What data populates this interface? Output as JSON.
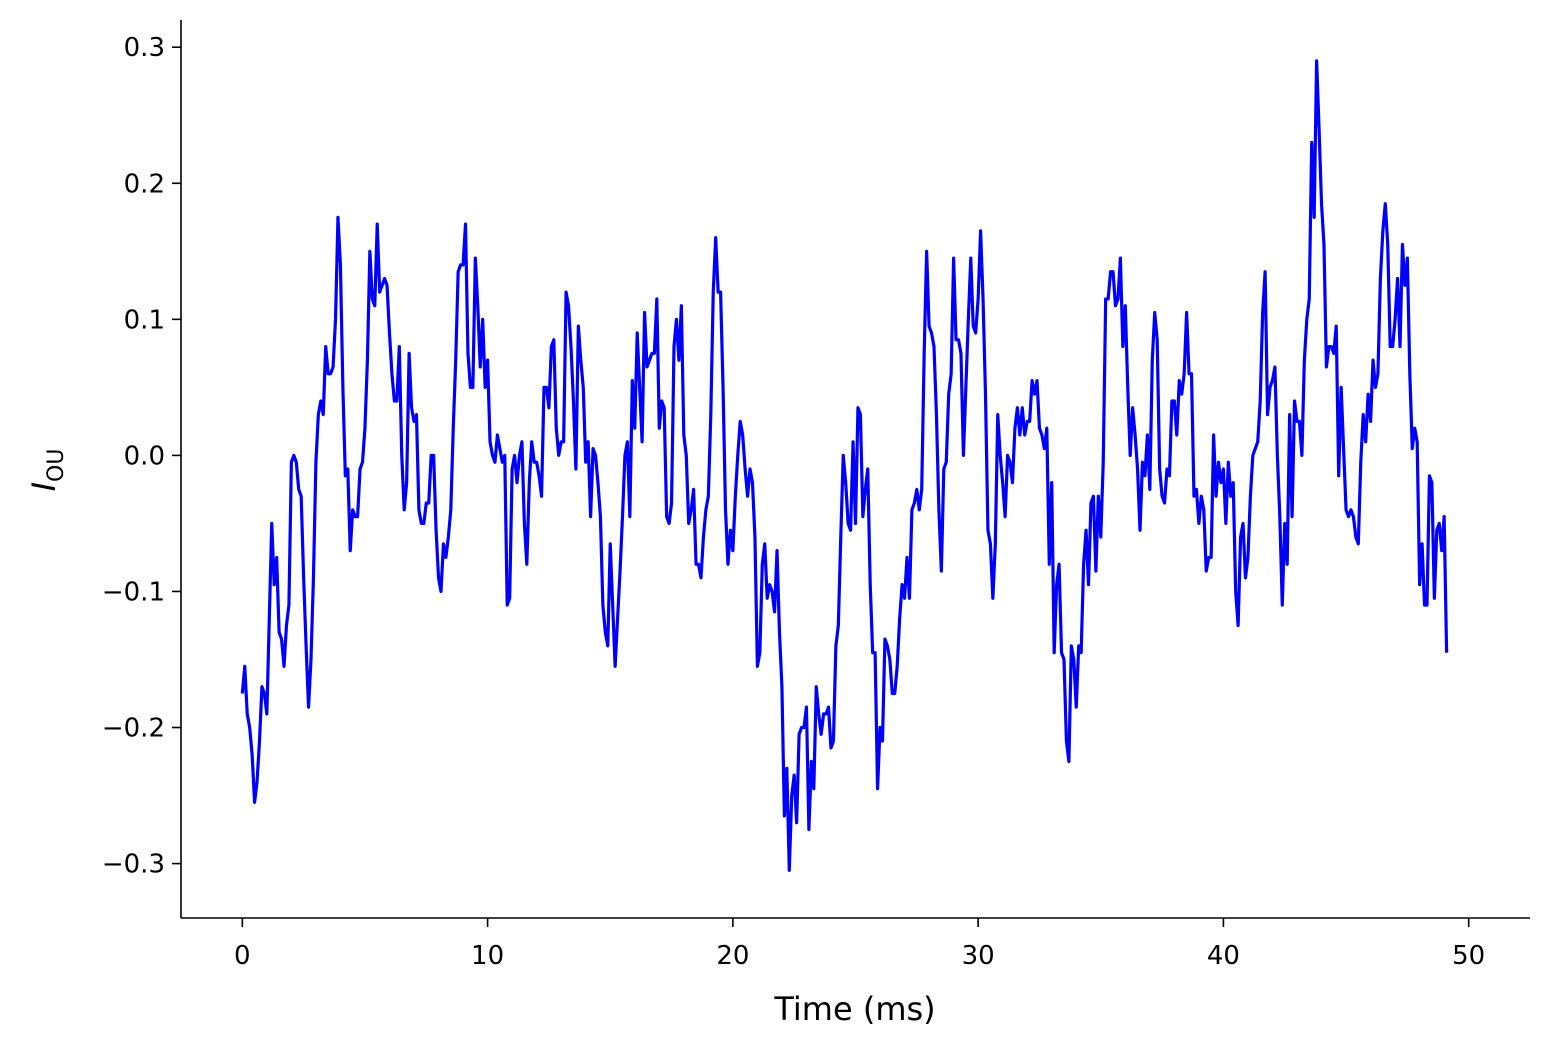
{
  "chart_data": {
    "type": "line",
    "xlabel": "Time (ms)",
    "ylabel_main": "I",
    "ylabel_sub": "OU",
    "xlim": [
      -2.5,
      52.5
    ],
    "ylim": [
      -0.34,
      0.32
    ],
    "x_ticks": [
      0,
      10,
      20,
      30,
      40,
      50
    ],
    "y_ticks": [
      -0.3,
      -0.2,
      -0.1,
      0.0,
      0.1,
      0.2,
      0.3
    ],
    "x_tick_labels": [
      "0",
      "10",
      "20",
      "30",
      "40",
      "50"
    ],
    "y_tick_labels": [
      "−0.3",
      "−0.2",
      "−0.1",
      "0.0",
      "0.1",
      "0.2",
      "0.3"
    ],
    "grid": false,
    "series": [
      {
        "color": "#0000ff",
        "dt": 0.1,
        "x_start": 0,
        "y": [
          -0.175,
          -0.155,
          -0.19,
          -0.2,
          -0.22,
          -0.255,
          -0.24,
          -0.21,
          -0.17,
          -0.175,
          -0.19,
          -0.12,
          -0.05,
          -0.095,
          -0.075,
          -0.13,
          -0.135,
          -0.155,
          -0.125,
          -0.11,
          -0.005,
          0.0,
          -0.005,
          -0.025,
          -0.03,
          -0.09,
          -0.14,
          -0.185,
          -0.15,
          -0.09,
          -0.005,
          0.03,
          0.04,
          0.03,
          0.08,
          0.06,
          0.06,
          0.065,
          0.1,
          0.175,
          0.14,
          0.05,
          -0.015,
          -0.01,
          -0.07,
          -0.04,
          -0.045,
          -0.045,
          -0.01,
          -0.005,
          0.02,
          0.07,
          0.15,
          0.115,
          0.11,
          0.17,
          0.12,
          0.125,
          0.13,
          0.125,
          0.09,
          0.06,
          0.04,
          0.04,
          0.08,
          0.0,
          -0.04,
          -0.02,
          0.075,
          0.035,
          0.025,
          0.03,
          -0.04,
          -0.05,
          -0.05,
          -0.035,
          -0.035,
          0.0,
          0.0,
          -0.055,
          -0.09,
          -0.1,
          -0.065,
          -0.075,
          -0.06,
          -0.04,
          0.02,
          0.07,
          0.135,
          0.14,
          0.14,
          0.17,
          0.075,
          0.05,
          0.05,
          0.145,
          0.11,
          0.065,
          0.1,
          0.05,
          0.07,
          0.01,
          0.0,
          -0.005,
          0.015,
          0.005,
          -0.005,
          0.0,
          -0.11,
          -0.105,
          -0.01,
          0.0,
          -0.02,
          0.0,
          0.01,
          -0.05,
          -0.08,
          -0.02,
          0.01,
          -0.005,
          -0.005,
          -0.015,
          -0.03,
          0.05,
          0.05,
          0.035,
          0.08,
          0.085,
          0.02,
          0.0,
          0.01,
          0.01,
          0.12,
          0.11,
          0.08,
          0.04,
          -0.01,
          0.095,
          0.07,
          0.05,
          -0.005,
          0.01,
          -0.045,
          0.005,
          0.0,
          -0.02,
          -0.045,
          -0.11,
          -0.13,
          -0.14,
          -0.065,
          -0.11,
          -0.155,
          -0.12,
          -0.085,
          -0.045,
          0.0,
          0.01,
          -0.045,
          0.055,
          0.02,
          0.09,
          0.05,
          0.01,
          0.105,
          0.065,
          0.07,
          0.075,
          0.075,
          0.115,
          0.02,
          0.04,
          0.035,
          -0.045,
          -0.05,
          -0.035,
          0.08,
          0.1,
          0.07,
          0.11,
          0.015,
          0.0,
          -0.05,
          -0.04,
          -0.025,
          -0.08,
          -0.08,
          -0.09,
          -0.06,
          -0.04,
          -0.03,
          0.03,
          0.12,
          0.16,
          0.12,
          0.12,
          0.05,
          -0.04,
          -0.08,
          -0.055,
          -0.07,
          -0.03,
          0.0,
          0.025,
          0.015,
          -0.01,
          -0.03,
          -0.01,
          -0.02,
          -0.06,
          -0.155,
          -0.145,
          -0.08,
          -0.065,
          -0.105,
          -0.095,
          -0.1,
          -0.115,
          -0.07,
          -0.13,
          -0.17,
          -0.265,
          -0.23,
          -0.305,
          -0.25,
          -0.235,
          -0.27,
          -0.205,
          -0.2,
          -0.2,
          -0.185,
          -0.275,
          -0.225,
          -0.245,
          -0.17,
          -0.19,
          -0.205,
          -0.19,
          -0.19,
          -0.185,
          -0.215,
          -0.21,
          -0.14,
          -0.125,
          -0.06,
          0.0,
          -0.02,
          -0.05,
          -0.055,
          0.01,
          -0.05,
          0.035,
          0.03,
          -0.045,
          -0.025,
          -0.01,
          -0.095,
          -0.145,
          -0.145,
          -0.245,
          -0.2,
          -0.21,
          -0.135,
          -0.14,
          -0.15,
          -0.175,
          -0.175,
          -0.155,
          -0.12,
          -0.095,
          -0.105,
          -0.075,
          -0.105,
          -0.04,
          -0.035,
          -0.025,
          -0.04,
          -0.025,
          0.075,
          0.15,
          0.095,
          0.09,
          0.08,
          0.03,
          -0.04,
          -0.085,
          -0.01,
          -0.005,
          0.045,
          0.06,
          0.145,
          0.085,
          0.085,
          0.075,
          0.0,
          0.05,
          0.1,
          0.145,
          0.095,
          0.09,
          0.115,
          0.165,
          0.115,
          0.045,
          -0.055,
          -0.065,
          -0.105,
          -0.065,
          0.03,
          0.0,
          -0.02,
          -0.045,
          0.0,
          -0.005,
          -0.02,
          0.02,
          0.035,
          0.015,
          0.035,
          0.015,
          0.025,
          0.025,
          0.055,
          0.045,
          0.055,
          0.02,
          0.015,
          0.005,
          0.02,
          -0.08,
          -0.02,
          -0.145,
          -0.095,
          -0.08,
          -0.145,
          -0.15,
          -0.21,
          -0.225,
          -0.14,
          -0.15,
          -0.185,
          -0.14,
          -0.145,
          -0.08,
          -0.055,
          -0.095,
          -0.035,
          -0.03,
          -0.085,
          -0.03,
          -0.06,
          -0.005,
          0.115,
          0.115,
          0.135,
          0.135,
          0.11,
          0.115,
          0.145,
          0.08,
          0.11,
          0.05,
          0.0,
          0.035,
          0.015,
          -0.01,
          -0.055,
          -0.005,
          -0.015,
          0.015,
          -0.025,
          0.07,
          0.105,
          0.085,
          -0.01,
          -0.03,
          -0.035,
          -0.01,
          -0.015,
          0.04,
          0.04,
          0.015,
          0.055,
          0.045,
          0.06,
          0.105,
          0.06,
          0.06,
          -0.03,
          -0.025,
          -0.05,
          -0.03,
          -0.04,
          -0.085,
          -0.075,
          -0.075,
          0.015,
          -0.03,
          -0.005,
          -0.02,
          -0.01,
          -0.05,
          -0.005,
          -0.03,
          -0.02,
          -0.1,
          -0.125,
          -0.06,
          -0.05,
          -0.09,
          -0.075,
          -0.03,
          0.0,
          0.005,
          0.01,
          0.04,
          0.105,
          0.135,
          0.03,
          0.05,
          0.055,
          0.065,
          0.0,
          -0.045,
          -0.11,
          -0.05,
          -0.08,
          0.03,
          -0.045,
          0.04,
          0.025,
          0.025,
          0.0,
          0.07,
          0.1,
          0.115,
          0.23,
          0.175,
          0.29,
          0.24,
          0.185,
          0.155,
          0.065,
          0.08,
          0.08,
          0.075,
          0.095,
          -0.015,
          0.05,
          0.005,
          -0.04,
          -0.045,
          -0.04,
          -0.045,
          -0.06,
          -0.065,
          -0.005,
          0.03,
          0.01,
          0.045,
          0.025,
          0.07,
          0.05,
          0.06,
          0.13,
          0.165,
          0.185,
          0.155,
          0.08,
          0.08,
          0.1,
          0.13,
          0.08,
          0.155,
          0.125,
          0.145,
          0.06,
          0.005,
          0.02,
          0.01,
          -0.095,
          -0.065,
          -0.11,
          -0.11,
          -0.015,
          -0.02,
          -0.105,
          -0.055,
          -0.05,
          -0.07,
          -0.045,
          -0.145
        ]
      }
    ]
  }
}
